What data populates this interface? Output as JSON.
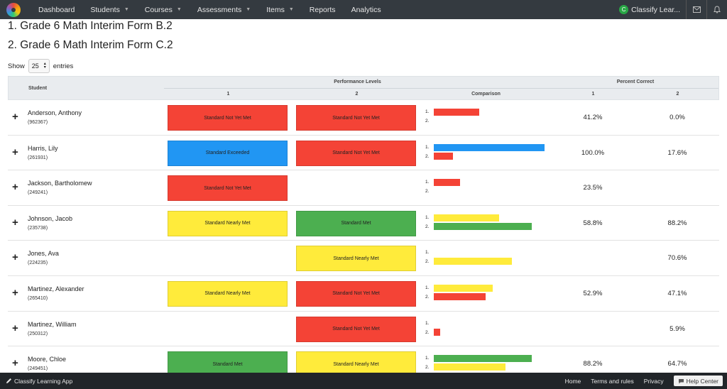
{
  "nav": {
    "items": [
      {
        "label": "Dashboard",
        "dropdown": false
      },
      {
        "label": "Students",
        "dropdown": true
      },
      {
        "label": "Courses",
        "dropdown": true
      },
      {
        "label": "Assessments",
        "dropdown": true
      },
      {
        "label": "Items",
        "dropdown": true
      },
      {
        "label": "Reports",
        "dropdown": false
      },
      {
        "label": "Analytics",
        "dropdown": false
      }
    ],
    "org_initial": "C",
    "org_name": "Classify Lear...",
    "icons": [
      "mail-icon",
      "bell-icon"
    ]
  },
  "forms": [
    "1. Grade 6 Math Interim Form B.2",
    "2. Grade 6 Math Interim Form C.2"
  ],
  "show_entries": {
    "prefix": "Show",
    "value": "25",
    "suffix": "entries"
  },
  "table": {
    "headers": {
      "student": "Student",
      "performance_levels": "Performance Levels",
      "percent_correct": "Percent Correct",
      "pl_1": "1",
      "pl_2": "2",
      "comparison": "Comparison",
      "pc_1": "1",
      "pc_2": "2"
    },
    "comparison_labels": [
      "1.",
      "2."
    ],
    "level_colors": {
      "Standard Not Yet Met": "#f44336",
      "Standard Exceeded": "#2196f3",
      "Standard Nearly Met": "#ffeb3b",
      "Standard Met": "#4caf50"
    },
    "rows": [
      {
        "name": "Anderson, Anthony",
        "id": "(962367)",
        "pl1": "Standard Not Yet Met",
        "pl2": "Standard Not Yet Met",
        "pct1": "41.2%",
        "pct2": "0.0%",
        "v1": 41.2,
        "v2": 0.0
      },
      {
        "name": "Harris, Lily",
        "id": "(261931)",
        "pl1": "Standard Exceeded",
        "pl2": "Standard Not Yet Met",
        "pct1": "100.0%",
        "pct2": "17.6%",
        "v1": 100.0,
        "v2": 17.6
      },
      {
        "name": "Jackson, Bartholomew",
        "id": "(249241)",
        "pl1": "Standard Not Yet Met",
        "pl2": "",
        "pct1": "23.5%",
        "pct2": "",
        "v1": 23.5,
        "v2": null
      },
      {
        "name": "Johnson, Jacob",
        "id": "(235738)",
        "pl1": "Standard Nearly Met",
        "pl2": "Standard Met",
        "pct1": "58.8%",
        "pct2": "88.2%",
        "v1": 58.8,
        "v2": 88.2
      },
      {
        "name": "Jones, Ava",
        "id": "(224235)",
        "pl1": "",
        "pl2": "Standard Nearly Met",
        "pct1": "",
        "pct2": "70.6%",
        "v1": null,
        "v2": 70.6
      },
      {
        "name": "Martinez, Alexander",
        "id": "(265410)",
        "pl1": "Standard Nearly Met",
        "pl2": "Standard Not Yet Met",
        "pct1": "52.9%",
        "pct2": "47.1%",
        "v1": 52.9,
        "v2": 47.1
      },
      {
        "name": "Martinez, William",
        "id": "(250312)",
        "pl1": "",
        "pl2": "Standard Not Yet Met",
        "pct1": "",
        "pct2": "5.9%",
        "v1": null,
        "v2": 5.9
      },
      {
        "name": "Moore, Chloe",
        "id": "(249451)",
        "pl1": "Standard Met",
        "pl2": "Standard Nearly Met",
        "pct1": "88.2%",
        "pct2": "64.7%",
        "v1": 88.2,
        "v2": 64.7
      }
    ]
  },
  "footer": {
    "brand": "Classify Learning App",
    "links": [
      "Home",
      "Terms and rules",
      "Privacy"
    ],
    "help": "Help Center"
  }
}
